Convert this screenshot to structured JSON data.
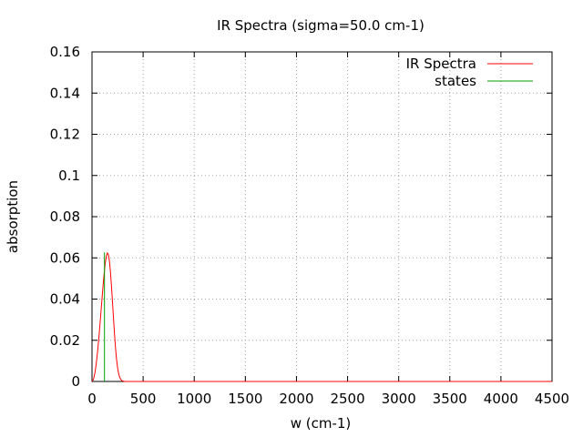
{
  "chart_data": {
    "type": "line",
    "title": "IR Spectra (sigma=50.0 cm-1)",
    "xlabel": "w (cm-1)",
    "ylabel": "absorption",
    "xlim": [
      0,
      4500
    ],
    "ylim": [
      0,
      0.16
    ],
    "x_ticks": [
      "0",
      "500",
      "1000",
      "1500",
      "2000",
      "2500",
      "3000",
      "3500",
      "4000",
      "4500"
    ],
    "y_ticks": [
      "0",
      "0.02",
      "0.04",
      "0.06",
      "0.08",
      "0.1",
      "0.12",
      "0.14",
      "0.16"
    ],
    "grid": true,
    "legend_position": "top-right",
    "series": [
      {
        "name": "IR Spectra",
        "color": "#ff0000",
        "kind": "line",
        "x": [
          0,
          10,
          20,
          30,
          40,
          50,
          60,
          70,
          80,
          90,
          100,
          110,
          120,
          130,
          140,
          150,
          160,
          170,
          180,
          190,
          200,
          210,
          220,
          230,
          240,
          250,
          260,
          270,
          280,
          290,
          300,
          320,
          350,
          400,
          500,
          1000,
          2000,
          3000,
          4000,
          4500
        ],
        "y": [
          0.0001,
          0.0006,
          0.0021,
          0.0046,
          0.0081,
          0.0124,
          0.0173,
          0.0229,
          0.0289,
          0.0352,
          0.0415,
          0.0475,
          0.053,
          0.0576,
          0.0608,
          0.0624,
          0.0617,
          0.0586,
          0.0535,
          0.0467,
          0.0389,
          0.0308,
          0.0231,
          0.0163,
          0.0108,
          0.0067,
          0.0039,
          0.0021,
          0.0011,
          0.0005,
          0.0002,
          0.0,
          0.0,
          0.0,
          0.0,
          0.0,
          0.0,
          0.0,
          0.0,
          0.0
        ]
      },
      {
        "name": "states",
        "color": "#00a000",
        "kind": "impulse",
        "x": [
          122
        ],
        "y": [
          0.0627
        ]
      }
    ]
  }
}
